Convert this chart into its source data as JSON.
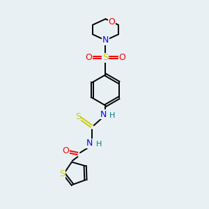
{
  "bg_color": "#e8f0f4",
  "colors": {
    "O": "#ff0000",
    "N": "#0000ff",
    "S": "#cccc00",
    "H": "#008080",
    "C": "#000000"
  },
  "figsize": [
    3.0,
    3.0
  ],
  "dpi": 100
}
